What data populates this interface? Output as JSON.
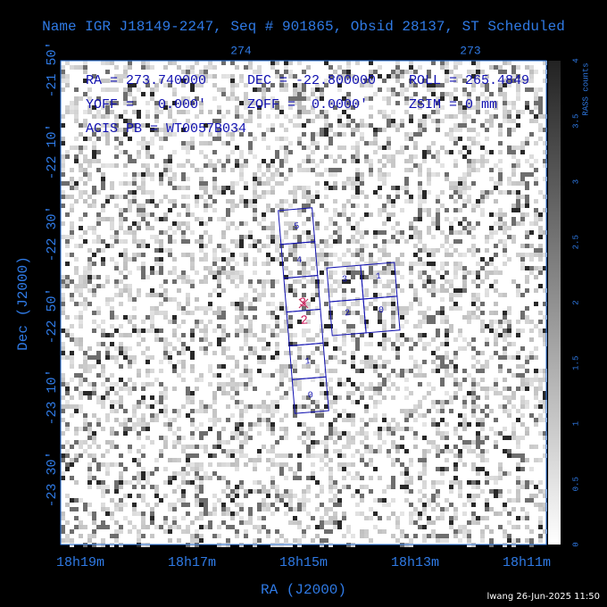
{
  "title": "Name IGR J18149-2247, Seq # 901865, Obsid 28137, ST Scheduled",
  "info": [
    "RA = 273.740000",
    "DEC = -22.800000",
    "ROLL = 265.4849",
    "YOFF =   0.000'",
    "ZOFF =  0.0000'",
    "ZSIM = 0 mm",
    "ACIS PB = WT0057B034"
  ],
  "axes": {
    "x_label": "RA (J2000)",
    "y_label": "Dec (J2000)",
    "x_ticks": [
      "18h19m",
      "18h17m",
      "18h15m",
      "18h13m",
      "18h11m"
    ],
    "y_ticks": [
      "-21 50'",
      "-22 10'",
      "-22 30'",
      "-22 50'",
      "-23 10'",
      "-23 30'"
    ],
    "top_ticks": [
      "274",
      "273"
    ]
  },
  "colorbar": {
    "label": "RASS counts",
    "ticks": [
      "0",
      "0.5",
      "1",
      "1.5",
      "2",
      "2.5",
      "3",
      "3.5",
      "4"
    ]
  },
  "chips": {
    "s_array": [
      "5",
      "4",
      "3",
      "2",
      "1",
      "0"
    ],
    "i_array": [
      "3",
      "1",
      "2",
      "0"
    ]
  },
  "footer": "lwang 26-Jun-2025 11:50"
}
